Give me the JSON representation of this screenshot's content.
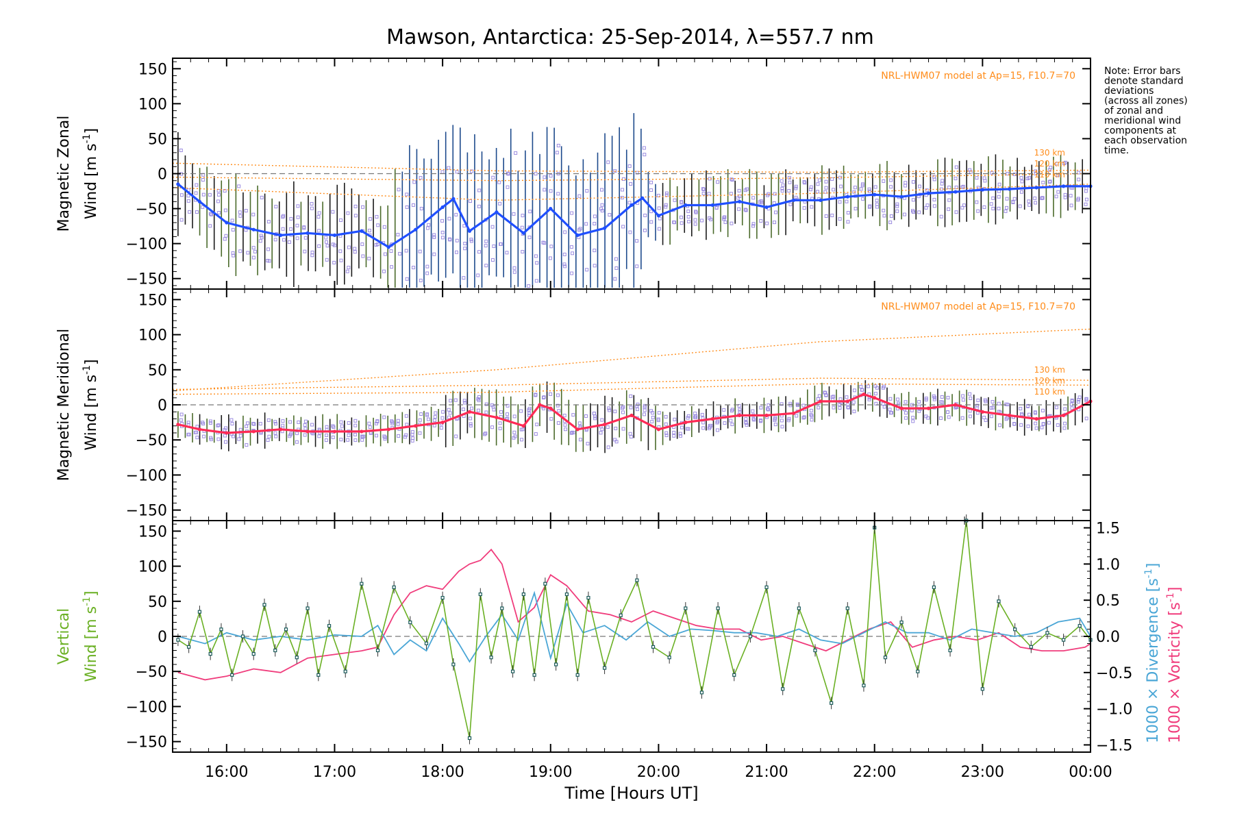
{
  "title": "Mawson, Antarctica: 25-Sep-2014, λ=557.7 nm",
  "note": {
    "lines": [
      "Note: Error bars",
      "denote standard",
      "deviations",
      "(across all zones)",
      "of zonal and",
      "meridional wind",
      "components at",
      "each observation",
      "time."
    ]
  },
  "colors": {
    "zonal_mean": "#1f4fff",
    "meridional_mean": "#ff2a55",
    "vertical": "#6ab023",
    "divergence": "#4aa6d6",
    "vorticity": "#f03c7c",
    "model": "#ff8c1a",
    "errorbar_dark": "#1a1a1a",
    "errorbar_blue": "#1d4a8c",
    "scatter": "#9b8ce0",
    "zero_line": "#777777"
  },
  "chart_data": [
    {
      "type": "line",
      "panel": "zonal",
      "ylabel_line1": "Magnetic Zonal",
      "ylabel_line2": "Wind [m s",
      "ylabel_sup": "-1",
      "ylabel_close": "]",
      "ylim": [
        -165,
        165
      ],
      "yticks": [
        -150,
        -100,
        -50,
        0,
        50,
        100,
        150
      ],
      "model_label": "NRL-HWM07 model at Ap=15, F10.7=70",
      "model_heights": [
        "130 km",
        "120 km",
        "110 km"
      ],
      "series": [
        {
          "x": [
            15.55,
            15.75,
            16.0,
            16.25,
            16.5,
            16.75,
            17.0,
            17.25,
            17.5,
            17.75,
            18.0,
            18.1,
            18.25,
            18.5,
            18.75,
            19.0,
            19.25,
            19.5,
            19.75,
            19.85,
            20.0,
            20.25,
            20.5,
            20.75,
            21.0,
            21.25,
            21.5,
            21.75,
            22.0,
            22.25,
            22.5,
            22.75,
            23.0,
            23.25,
            23.5,
            23.75,
            24.0
          ],
          "y": [
            -15,
            -40,
            -70,
            -80,
            -88,
            -85,
            -88,
            -82,
            -105,
            -80,
            -48,
            -36,
            -82,
            -55,
            -85,
            -50,
            -88,
            -78,
            -45,
            -35,
            -60,
            -45,
            -45,
            -40,
            -48,
            -38,
            -38,
            -33,
            -30,
            -33,
            -28,
            -26,
            -23,
            -22,
            -20,
            -18,
            -18
          ]
        }
      ],
      "model": [
        {
          "name": "130 km",
          "x": [
            15.5,
            18.5,
            21.5,
            24.0
          ],
          "y": [
            15,
            4,
            2,
            5
          ]
        },
        {
          "name": "120 km",
          "x": [
            15.5,
            18.5,
            21.5,
            24.0
          ],
          "y": [
            -5,
            -10,
            -6,
            0
          ]
        },
        {
          "name": "110 km",
          "x": [
            15.5,
            18.5,
            21.5,
            24.0
          ],
          "y": [
            -20,
            -38,
            -28,
            -15
          ]
        }
      ]
    },
    {
      "type": "line",
      "panel": "meridional",
      "ylabel_line1": "Magnetic Meridional",
      "ylabel_line2": "Wind [m s",
      "ylabel_sup": "-1",
      "ylabel_close": "]",
      "ylim": [
        -165,
        165
      ],
      "yticks": [
        -150,
        -100,
        -50,
        0,
        50,
        100,
        150
      ],
      "model_label": "NRL-HWM07 model at Ap=15, F10.7=70",
      "model_heights": [
        "130 km",
        "120 km",
        "110 km"
      ],
      "series": [
        {
          "x": [
            15.55,
            15.75,
            16.0,
            16.25,
            16.5,
            16.75,
            17.0,
            17.25,
            17.5,
            17.75,
            18.0,
            18.25,
            18.5,
            18.75,
            18.9,
            19.0,
            19.25,
            19.5,
            19.75,
            20.0,
            20.25,
            20.5,
            20.75,
            21.0,
            21.25,
            21.5,
            21.75,
            21.9,
            22.0,
            22.25,
            22.5,
            22.75,
            23.0,
            23.25,
            23.5,
            23.75,
            24.0
          ],
          "y": [
            -28,
            -35,
            -40,
            -38,
            -35,
            -38,
            -38,
            -38,
            -35,
            -30,
            -25,
            -10,
            -18,
            -30,
            0,
            -5,
            -35,
            -28,
            -15,
            -35,
            -25,
            -20,
            -15,
            -15,
            -12,
            5,
            5,
            15,
            10,
            -5,
            -5,
            0,
            -10,
            -15,
            -20,
            -15,
            5
          ]
        }
      ],
      "model": [
        {
          "name": "130 km",
          "x": [
            15.5,
            18.5,
            21.5,
            24.0
          ],
          "y": [
            20,
            50,
            90,
            108
          ]
        },
        {
          "name": "120 km",
          "x": [
            15.5,
            18.5,
            21.5,
            24.0
          ],
          "y": [
            22,
            28,
            38,
            35
          ]
        },
        {
          "name": "110 km",
          "x": [
            15.5,
            18.5,
            21.5,
            24.0
          ],
          "y": [
            15,
            18,
            30,
            28
          ]
        }
      ]
    },
    {
      "type": "line",
      "panel": "vertical",
      "ylabel_left_line1": "Vertical",
      "ylabel_left_line2": "Wind [m s",
      "ylabel_left_sup": "-1",
      "ylabel_left_close": "]",
      "ylabel_right_div": "1000 × Divergence [s",
      "ylabel_right_vort": "1000 × Vorticity [s",
      "ylabel_right_sup": "-1",
      "ylabel_right_close": "]",
      "ylim": [
        -165,
        165
      ],
      "yticks": [
        -150,
        -100,
        -50,
        0,
        50,
        100,
        150
      ],
      "y2lim": [
        -1.6,
        1.6
      ],
      "y2ticks": [
        -1.5,
        -1.0,
        -0.5,
        0.0,
        0.5,
        1.0,
        1.5
      ],
      "y2ticklabels": [
        "−1.5",
        "−1.0",
        "−0.5",
        "0.0",
        "0.5",
        "1.0",
        "1.5"
      ],
      "series": [
        {
          "name": "Vertical Wind",
          "x": [
            15.55,
            15.65,
            15.75,
            15.85,
            15.95,
            16.05,
            16.15,
            16.25,
            16.35,
            16.45,
            16.55,
            16.65,
            16.75,
            16.85,
            16.95,
            17.1,
            17.25,
            17.4,
            17.55,
            17.7,
            17.85,
            18.0,
            18.1,
            18.25,
            18.35,
            18.45,
            18.55,
            18.65,
            18.75,
            18.85,
            18.95,
            19.05,
            19.15,
            19.25,
            19.35,
            19.5,
            19.65,
            19.8,
            19.95,
            20.1,
            20.25,
            20.4,
            20.55,
            20.7,
            20.85,
            21.0,
            21.15,
            21.3,
            21.45,
            21.6,
            21.75,
            21.9,
            22.0,
            22.1,
            22.25,
            22.4,
            22.55,
            22.7,
            22.85,
            23.0,
            23.15,
            23.3,
            23.45,
            23.6,
            23.75,
            23.9,
            24.0
          ],
          "y": [
            -5,
            -15,
            35,
            -25,
            10,
            -55,
            0,
            -25,
            45,
            -20,
            10,
            -30,
            40,
            -55,
            15,
            -50,
            75,
            -20,
            70,
            20,
            -10,
            55,
            -40,
            -145,
            60,
            -30,
            40,
            -50,
            60,
            -55,
            75,
            -40,
            60,
            -55,
            55,
            -45,
            30,
            80,
            -15,
            -30,
            40,
            -80,
            40,
            -55,
            0,
            70,
            -75,
            40,
            -20,
            -95,
            40,
            -70,
            155,
            -30,
            20,
            -50,
            70,
            -20,
            165,
            -75,
            50,
            10,
            -15,
            5,
            -5,
            15,
            -5
          ]
        }
      ],
      "series_right": [
        {
          "name": "1000 × Divergence",
          "x": [
            15.55,
            15.8,
            16.0,
            16.25,
            16.5,
            16.75,
            17.0,
            17.25,
            17.4,
            17.55,
            17.7,
            17.85,
            18.0,
            18.15,
            18.25,
            18.4,
            18.55,
            18.7,
            18.85,
            19.0,
            19.15,
            19.3,
            19.5,
            19.7,
            19.9,
            20.1,
            20.3,
            20.5,
            20.7,
            20.9,
            21.1,
            21.3,
            21.5,
            21.7,
            21.9,
            22.1,
            22.3,
            22.5,
            22.7,
            22.9,
            23.1,
            23.3,
            23.5,
            23.7,
            23.9,
            24.0
          ],
          "y": [
            0.0,
            -0.1,
            0.05,
            -0.05,
            0.0,
            -0.05,
            0.02,
            0.0,
            0.15,
            -0.25,
            -0.05,
            -0.2,
            0.25,
            -0.1,
            -0.35,
            0.0,
            0.3,
            -0.05,
            0.6,
            -0.3,
            0.45,
            0.05,
            0.15,
            -0.05,
            0.2,
            0.0,
            0.1,
            0.08,
            0.05,
            0.05,
            0.0,
            0.1,
            -0.05,
            -0.1,
            0.05,
            0.2,
            0.05,
            0.05,
            -0.05,
            0.1,
            0.05,
            0.0,
            0.05,
            0.2,
            0.25,
            0.0
          ]
        },
        {
          "name": "1000 × Vorticity",
          "x": [
            15.55,
            15.8,
            16.0,
            16.25,
            16.5,
            16.75,
            17.0,
            17.25,
            17.4,
            17.55,
            17.7,
            17.85,
            18.0,
            18.15,
            18.25,
            18.35,
            18.45,
            18.55,
            18.7,
            18.85,
            19.0,
            19.15,
            19.35,
            19.55,
            19.75,
            19.95,
            20.15,
            20.35,
            20.55,
            20.75,
            20.95,
            21.15,
            21.35,
            21.55,
            21.75,
            21.95,
            22.15,
            22.35,
            22.55,
            22.75,
            22.95,
            23.15,
            23.35,
            23.55,
            23.75,
            23.95,
            24.0
          ],
          "y": [
            -0.5,
            -0.6,
            -0.55,
            -0.45,
            -0.5,
            -0.3,
            -0.25,
            -0.2,
            -0.15,
            0.3,
            0.6,
            0.7,
            0.65,
            0.9,
            1.0,
            1.05,
            1.2,
            1.0,
            0.2,
            0.4,
            0.85,
            0.7,
            0.35,
            0.3,
            0.2,
            0.35,
            0.25,
            0.15,
            0.1,
            0.1,
            -0.05,
            0.0,
            -0.1,
            -0.2,
            -0.05,
            0.1,
            0.2,
            -0.15,
            -0.05,
            0.0,
            -0.05,
            0.05,
            -0.15,
            -0.2,
            -0.2,
            -0.15,
            -0.1
          ]
        }
      ]
    }
  ],
  "xaxis": {
    "xlabel": "Time [Hours UT]",
    "xlim": [
      15.5,
      24.0
    ],
    "ticks": [
      16,
      17,
      18,
      19,
      20,
      21,
      22,
      23,
      24
    ],
    "ticklabels": [
      "16:00",
      "17:00",
      "18:00",
      "19:00",
      "20:00",
      "21:00",
      "22:00",
      "23:00",
      "00:00"
    ]
  }
}
